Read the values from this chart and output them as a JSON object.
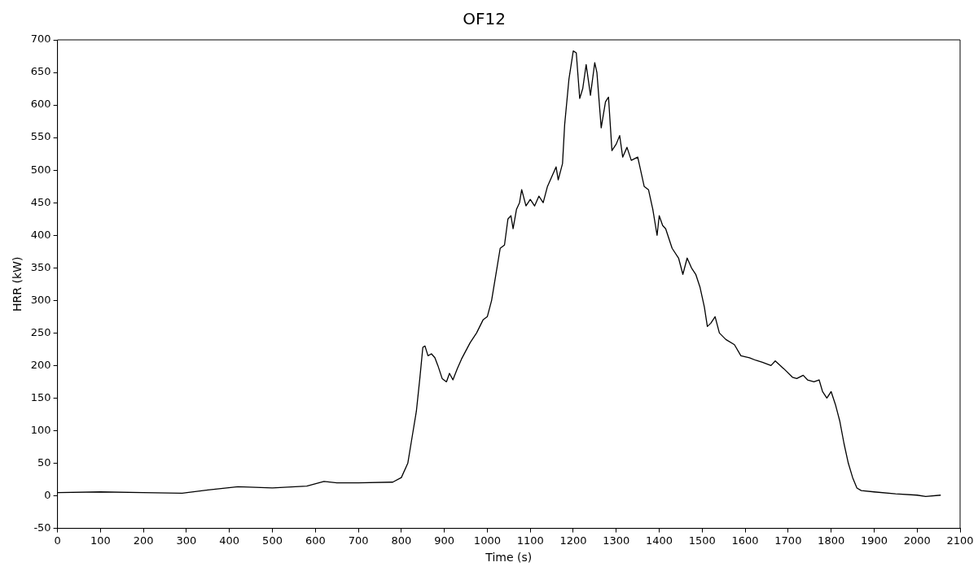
{
  "chart_data": {
    "type": "line",
    "title": "OF12",
    "xlabel": "Time (s)",
    "ylabel": "HRR (kW)",
    "xlim": [
      0,
      2100
    ],
    "xticks": [
      0,
      100,
      200,
      300,
      400,
      500,
      600,
      700,
      800,
      900,
      1000,
      1100,
      1200,
      1300,
      1400,
      1500,
      1600,
      1700,
      1800,
      1900,
      2000,
      2100
    ],
    "ylim": [
      -50,
      700
    ],
    "yticks": [
      -50,
      0,
      50,
      100,
      150,
      200,
      250,
      300,
      350,
      400,
      450,
      500,
      550,
      600,
      650,
      700
    ],
    "grid": false,
    "legend": false,
    "marker": "none",
    "line_style": "solid",
    "series": [
      {
        "color": "#000000",
        "x": [
          0,
          100,
          200,
          290,
          350,
          420,
          500,
          580,
          620,
          650,
          700,
          780,
          800,
          815,
          825,
          835,
          843,
          850,
          855,
          862,
          870,
          878,
          885,
          895,
          905,
          912,
          920,
          930,
          940,
          960,
          975,
          990,
          1000,
          1010,
          1020,
          1030,
          1040,
          1048,
          1055,
          1060,
          1068,
          1075,
          1080,
          1090,
          1100,
          1110,
          1120,
          1130,
          1140,
          1150,
          1160,
          1165,
          1175,
          1180,
          1190,
          1200,
          1207,
          1215,
          1222,
          1230,
          1240,
          1250,
          1255,
          1265,
          1275,
          1282,
          1290,
          1300,
          1308,
          1315,
          1325,
          1335,
          1350,
          1365,
          1375,
          1385,
          1395,
          1400,
          1408,
          1415,
          1430,
          1445,
          1455,
          1465,
          1475,
          1485,
          1495,
          1505,
          1512,
          1520,
          1530,
          1540,
          1555,
          1575,
          1590,
          1610,
          1625,
          1640,
          1660,
          1670,
          1690,
          1710,
          1720,
          1735,
          1745,
          1760,
          1772,
          1780,
          1790,
          1800,
          1810,
          1820,
          1830,
          1840,
          1850,
          1860,
          1870,
          1900,
          1950,
          2000,
          2020,
          2055
        ],
        "values": [
          5,
          6,
          5,
          4,
          9,
          14,
          12,
          15,
          22,
          20,
          20,
          21,
          28,
          50,
          90,
          130,
          180,
          228,
          230,
          215,
          218,
          212,
          200,
          180,
          175,
          188,
          178,
          195,
          210,
          235,
          250,
          270,
          275,
          300,
          340,
          380,
          385,
          425,
          430,
          410,
          440,
          450,
          470,
          445,
          455,
          445,
          460,
          450,
          475,
          490,
          505,
          485,
          510,
          570,
          640,
          683,
          680,
          610,
          625,
          662,
          615,
          665,
          650,
          565,
          605,
          612,
          530,
          540,
          553,
          520,
          535,
          515,
          520,
          475,
          470,
          440,
          400,
          430,
          415,
          410,
          380,
          365,
          340,
          365,
          350,
          340,
          320,
          290,
          260,
          265,
          275,
          250,
          240,
          232,
          215,
          212,
          208,
          205,
          200,
          207,
          195,
          182,
          180,
          185,
          178,
          175,
          178,
          160,
          150,
          160,
          140,
          115,
          80,
          50,
          28,
          12,
          8,
          6,
          3,
          1,
          -1,
          1
        ]
      }
    ]
  }
}
